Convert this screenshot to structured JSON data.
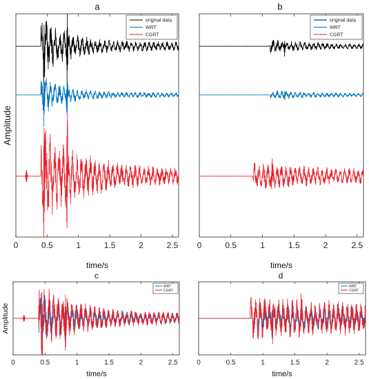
{
  "colors": {
    "original": "#000000",
    "wrt": "#0072BD",
    "cgrt": "#E8202A",
    "axis": "#262626"
  },
  "chart_data": [
    {
      "id": "a",
      "type": "line",
      "title": "a",
      "xlabel": "time/s",
      "ylabel": "Amplitude",
      "xlim": [
        0,
        2.6
      ],
      "xticks": [
        "0",
        "0.5",
        "1",
        "1.5",
        "2",
        "2.5"
      ],
      "yticks_shown": false,
      "legend": {
        "placement": "top-right",
        "entries": [
          "original data",
          "WRT",
          "CGRT"
        ]
      },
      "series": [
        {
          "name": "original data",
          "color_key": "original",
          "offset": 3.2,
          "onset": 0.4,
          "peak": 0.6,
          "decay": 2.2,
          "tail": 0.1,
          "spikes": [
            [
              0.45,
              0.55
            ],
            [
              0.82,
              0.75
            ]
          ]
        },
        {
          "name": "WRT",
          "color_key": "wrt",
          "offset": 2.0,
          "onset": 0.4,
          "peak": 0.45,
          "decay": 2.8,
          "tail": 0.06,
          "spikes": [
            [
              0.45,
              0.45
            ],
            [
              0.82,
              0.4
            ]
          ]
        },
        {
          "name": "CGRT",
          "color_key": "cgrt",
          "offset": 0.0,
          "onset": 0.4,
          "peak": 1.0,
          "decay": 1.6,
          "tail": 0.18,
          "spikes": [
            [
              0.45,
              1.0
            ],
            [
              0.82,
              1.15
            ],
            [
              0.17,
              0.15
            ]
          ]
        }
      ],
      "ylim": [
        -1.5,
        4.0
      ]
    },
    {
      "id": "b",
      "type": "line",
      "title": "b",
      "xlabel": "time/s",
      "ylabel": "",
      "xlim": [
        0,
        2.6
      ],
      "xticks": [
        "0",
        "0.5",
        "1",
        "1.5",
        "2",
        "2.5"
      ],
      "yticks_shown": false,
      "legend": {
        "placement": "top-right",
        "entries": [
          "original data",
          "WRT",
          "CGRT"
        ]
      },
      "series": [
        {
          "name": "original data",
          "color_key": "original",
          "offset": 3.2,
          "onset": 1.12,
          "peak": 0.12,
          "decay": 1.2,
          "tail": 0.04,
          "spikes": [
            [
              1.35,
              0.18
            ]
          ]
        },
        {
          "name": "WRT",
          "color_key": "wrt",
          "offset": 2.0,
          "onset": 1.12,
          "peak": 0.08,
          "decay": 1.2,
          "tail": 0.03,
          "spikes": [
            [
              1.35,
              0.1
            ]
          ]
        },
        {
          "name": "CGRT",
          "color_key": "cgrt",
          "offset": 0.0,
          "onset": 0.85,
          "peak": 0.22,
          "decay": 0.6,
          "tail": 0.1,
          "spikes": [
            [
              1.15,
              0.3
            ]
          ]
        }
      ],
      "ylim": [
        -1.5,
        4.0
      ]
    },
    {
      "id": "c",
      "type": "line",
      "title": "c",
      "xlabel": "time/s",
      "ylabel": "Amplitude",
      "xlim": [
        0,
        2.6
      ],
      "xticks": [
        "0",
        "0.5",
        "1",
        "1.5",
        "2",
        "2.5"
      ],
      "yticks_shown": false,
      "legend": {
        "placement": "top-right",
        "entries": [
          "WRT",
          "CGRT"
        ]
      },
      "series": [
        {
          "name": "WRT",
          "color_key": "wrt",
          "offset": 0.0,
          "onset": 0.4,
          "peak": 0.8,
          "decay": 1.6,
          "tail": 0.15,
          "spikes": [
            [
              0.45,
              0.8
            ],
            [
              0.82,
              0.7
            ]
          ]
        },
        {
          "name": "CGRT",
          "color_key": "cgrt",
          "offset": 0.0,
          "onset": 0.4,
          "peak": 1.0,
          "decay": 1.6,
          "tail": 0.18,
          "spikes": [
            [
              0.45,
              1.0
            ],
            [
              0.82,
              1.0
            ],
            [
              0.17,
              0.12
            ]
          ]
        }
      ],
      "ylim": [
        -1.3,
        1.3
      ]
    },
    {
      "id": "d",
      "type": "line",
      "title": "d",
      "xlabel": "time/s",
      "ylabel": "",
      "xlim": [
        0,
        2.6
      ],
      "xticks": [
        "0",
        "0.5",
        "1",
        "1.5",
        "2",
        "2.5"
      ],
      "yticks_shown": false,
      "legend": {
        "placement": "top-right",
        "entries": [
          "WRT",
          "CGRT"
        ]
      },
      "series": [
        {
          "name": "WRT",
          "color_key": "wrt",
          "offset": 0.0,
          "onset": 0.85,
          "peak": 0.35,
          "decay": 0.4,
          "tail": 0.2,
          "spikes": [
            [
              1.15,
              0.4
            ]
          ]
        },
        {
          "name": "CGRT",
          "color_key": "cgrt",
          "offset": 0.0,
          "onset": 0.8,
          "peak": 0.45,
          "decay": 0.3,
          "tail": 0.28,
          "spikes": [
            [
              1.15,
              0.55
            ],
            [
              1.6,
              0.4
            ]
          ]
        }
      ],
      "ylim": [
        -1.3,
        1.3
      ]
    }
  ]
}
